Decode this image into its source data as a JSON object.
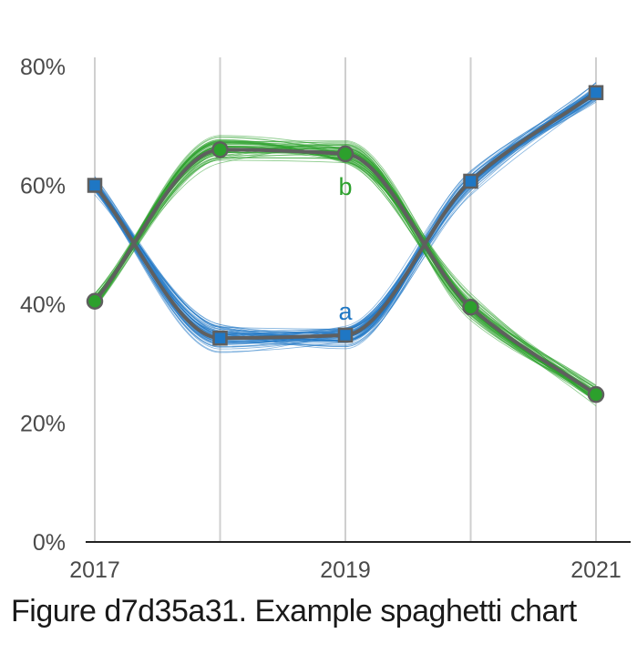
{
  "caption": "Figure d7d35a31. Example spaghetti chart",
  "chart_data": {
    "type": "line",
    "title": "",
    "xlabel": "",
    "ylabel": "",
    "x": [
      2017,
      2018,
      2019,
      2020,
      2021
    ],
    "x_tick_labels": [
      "2017",
      "2019",
      "2021"
    ],
    "x_tick_values": [
      2017,
      2019,
      2021
    ],
    "ylim": [
      0,
      0.8
    ],
    "y_tick_values": [
      0,
      0.2,
      0.4,
      0.6,
      0.8
    ],
    "y_tick_labels": [
      "0%",
      "20%",
      "40%",
      "60%",
      "80%"
    ],
    "grid": "vertical",
    "series": [
      {
        "name": "a",
        "color": "#1f77c4",
        "marker": "square",
        "values": [
          0.6,
          0.343,
          0.348,
          0.607,
          0.756
        ],
        "label_at": 2019,
        "label_side": "above"
      },
      {
        "name": "b",
        "color": "#2ca02c",
        "marker": "circle",
        "values": [
          0.405,
          0.66,
          0.653,
          0.395,
          0.248
        ],
        "label_at": 2019,
        "label_side": "below"
      }
    ],
    "spaghetti": {
      "lines_per_series": 60
    }
  }
}
